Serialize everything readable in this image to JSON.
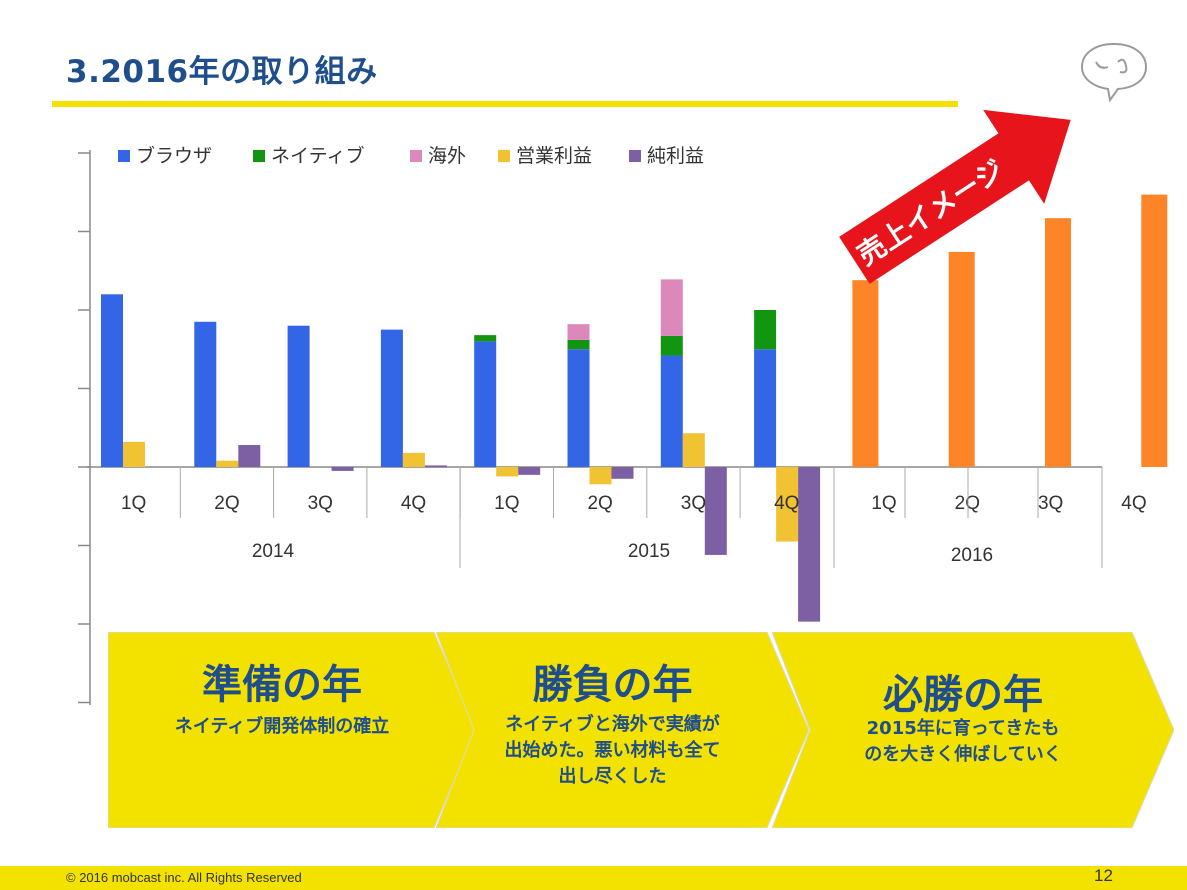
{
  "header": {
    "title": "3.2016年の取り組み"
  },
  "chart_data": {
    "type": "bar",
    "y_unit_note": "no y tick labels printed; values relative (1 = one gridline step)",
    "ylim": [
      -3,
      4
    ],
    "legend": {
      "placement": "top-left",
      "items": [
        {
          "name": "ブラウザ",
          "color": "#3366e6"
        },
        {
          "name": "ネイティブ",
          "color": "#129612"
        },
        {
          "name": "海外",
          "color": "#dd88bb"
        },
        {
          "name": "営業利益",
          "color": "#f1c232"
        },
        {
          "name": "純利益",
          "color": "#7d5fa4"
        }
      ]
    },
    "periods": [
      {
        "q": "1Q",
        "year": "2014",
        "browser": 2.2,
        "native": 0,
        "overseas": 0,
        "op": 0.32,
        "net": 0
      },
      {
        "q": "2Q",
        "year": "2014",
        "browser": 1.85,
        "native": 0,
        "overseas": 0,
        "op": 0.08,
        "net": 0.28
      },
      {
        "q": "3Q",
        "year": "2014",
        "browser": 1.8,
        "native": 0,
        "overseas": 0,
        "op": 0,
        "net": -0.05
      },
      {
        "q": "4Q",
        "year": "2014",
        "browser": 1.75,
        "native": 0,
        "overseas": 0,
        "op": 0.18,
        "net": 0.02
      },
      {
        "q": "1Q",
        "year": "2015",
        "browser": 1.6,
        "native": 0.08,
        "overseas": 0,
        "op": -0.12,
        "net": -0.1
      },
      {
        "q": "2Q",
        "year": "2015",
        "browser": 1.5,
        "native": 0.12,
        "overseas": 0.2,
        "op": -0.22,
        "net": -0.15
      },
      {
        "q": "3Q",
        "year": "2015",
        "browser": 1.42,
        "native": 0.25,
        "overseas": 0.72,
        "op": 0.43,
        "net": -1.12
      },
      {
        "q": "4Q",
        "year": "2015",
        "browser": 1.5,
        "native": 0.5,
        "overseas": 0,
        "op": -0.95,
        "net": -1.97
      },
      {
        "q": "1Q",
        "year": "2016",
        "forecast": 2.38
      },
      {
        "q": "2Q",
        "year": "2016",
        "forecast": 2.74
      },
      {
        "q": "3Q",
        "year": "2016",
        "forecast": 3.17
      },
      {
        "q": "4Q",
        "year": "2016",
        "forecast": 3.47
      }
    ],
    "years": [
      "2014",
      "2015",
      "2016"
    ],
    "forecast_color": "#fd8528",
    "grid": false
  },
  "callout": {
    "label": "売上イメージ",
    "color": "#e8141b"
  },
  "chevrons": [
    {
      "heading": "準備の年",
      "lines": [
        "ネイティブ開発体制の確立"
      ]
    },
    {
      "heading": "勝負の年",
      "lines": [
        "ネイティブと海外で実績が",
        "出始めた。悪い材料も全て",
        "出し尽くした"
      ]
    },
    {
      "heading": "必勝の年",
      "lines": [
        "2015年に育ってきたも",
        "のを大きく伸ばしていく"
      ]
    }
  ],
  "colors": {
    "accent_yellow": "#f3e200",
    "title_blue": "#1f4e8c"
  },
  "footer": {
    "copyright": "© 2016 mobcast inc. All Rights Reserved",
    "page": "12"
  }
}
